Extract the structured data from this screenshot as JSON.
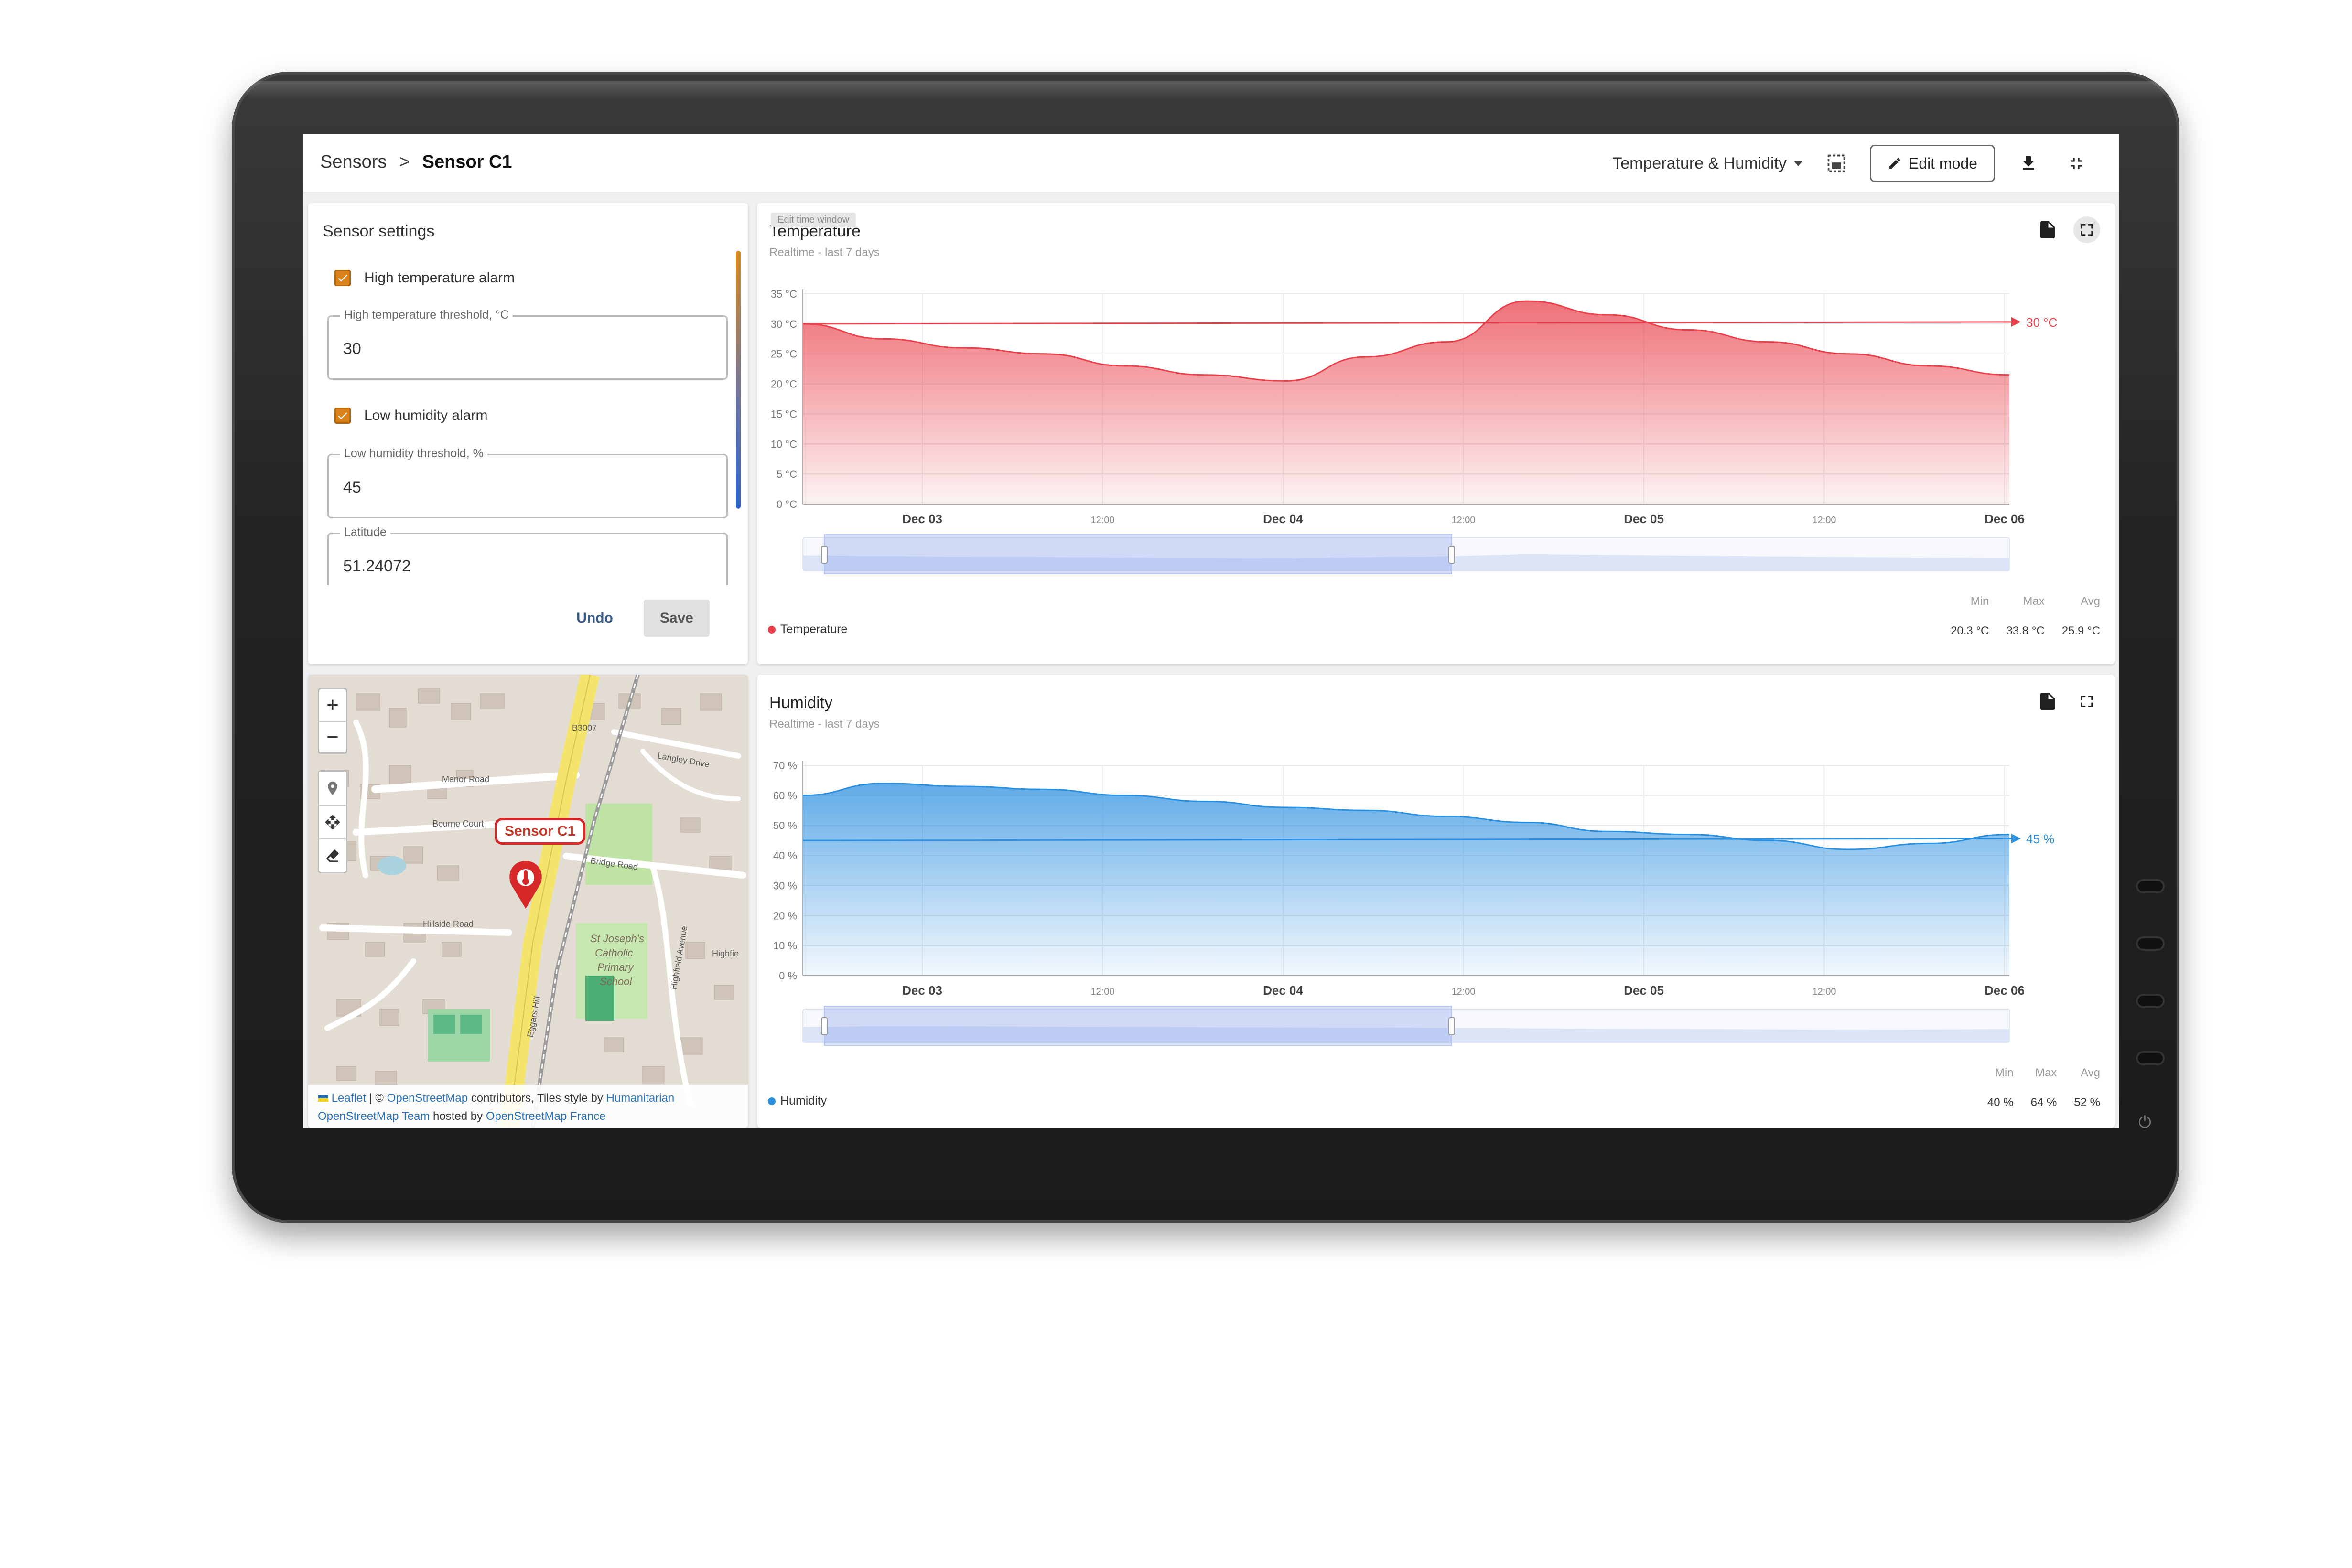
{
  "breadcrumb": {
    "root": "Sensors",
    "separator": ">",
    "current": "Sensor C1"
  },
  "toolbar": {
    "view_selector": "Temperature & Humidity",
    "edit_mode_label": "Edit mode"
  },
  "settings": {
    "title": "Sensor settings",
    "high_temp_alarm_label": "High temperature alarm",
    "high_temp_threshold_label": "High temperature threshold, °C",
    "high_temp_threshold_value": "30",
    "low_humidity_alarm_label": "Low humidity alarm",
    "low_humidity_threshold_label": "Low humidity threshold, %",
    "low_humidity_threshold_value": "45",
    "latitude_label": "Latitude",
    "latitude_value": "51.24072",
    "undo_label": "Undo",
    "save_label": "Save"
  },
  "map": {
    "marker_label": "Sensor C1",
    "street_labels": [
      "Manor Road",
      "Bourne Court",
      "Hillside Road",
      "Bridge Road",
      "B3007",
      "Langley Drive",
      "Highfield Avenue",
      "Eggars Hill",
      "Highfie"
    ],
    "school_label": [
      "St Joseph's",
      "Catholic",
      "Primary",
      "School"
    ],
    "attribution": {
      "leaflet": "Leaflet",
      "sep": " | © ",
      "osm": "OpenStreetMap",
      "contrib": " contributors, Tiles style by ",
      "humanitarian": "Humanitarian",
      "osm_team": "OpenStreetMap Team",
      "hosted": " hosted by ",
      "osm_france": "OpenStreetMap France"
    }
  },
  "temperature": {
    "overlay_tag": "Edit time window",
    "title": "Temperature",
    "subtitle": "Realtime - last 7 days",
    "legend": "Temperature",
    "threshold_label": "30 °C",
    "stats": {
      "min_label": "Min",
      "max_label": "Max",
      "avg_label": "Avg",
      "min": "20.3 °C",
      "max": "33.8 °C",
      "avg": "25.9 °C"
    }
  },
  "humidity": {
    "title": "Humidity",
    "subtitle": "Realtime - last 7 days",
    "legend": "Humidity",
    "threshold_label": "45 %",
    "stats": {
      "min_label": "Min",
      "max_label": "Max",
      "avg_label": "Avg",
      "min": "40 %",
      "max": "64 %",
      "avg": "52 %"
    }
  },
  "chart_data": [
    {
      "type": "area",
      "title": "Temperature",
      "ylim": [
        0,
        35
      ],
      "yticks": [
        "0 °C",
        "5 °C",
        "10 °C",
        "15 °C",
        "20 °C",
        "25 °C",
        "30 °C",
        "35 °C"
      ],
      "xticks": [
        "Dec 03",
        "12:00",
        "Dec 04",
        "12:00",
        "Dec 05",
        "12:00",
        "Dec 06"
      ],
      "color": "#e8414b",
      "threshold": 30,
      "x": [
        "Dec 02 12:00",
        "Dec 02 18:00",
        "Dec 03 00:00",
        "Dec 03 06:00",
        "Dec 03 12:00",
        "Dec 03 18:00",
        "Dec 04 00:00",
        "Dec 04 06:00",
        "Dec 04 12:00",
        "Dec 04 18:00",
        "Dec 05 00:00",
        "Dec 05 06:00",
        "Dec 05 12:00",
        "Dec 05 18:00",
        "Dec 06 00:00",
        "Dec 06 06:00"
      ],
      "values": [
        30,
        27.5,
        26,
        25,
        23,
        21.5,
        20.5,
        24.5,
        27,
        33.8,
        31.5,
        29,
        27,
        25,
        23,
        21.5
      ],
      "grid": true,
      "legend_position": "bottom-left"
    },
    {
      "type": "area",
      "title": "Humidity",
      "ylim": [
        0,
        70
      ],
      "yticks": [
        "0 %",
        "10 %",
        "20 %",
        "30 %",
        "40 %",
        "50 %",
        "60 %",
        "70 %"
      ],
      "xticks": [
        "Dec 03",
        "12:00",
        "Dec 04",
        "12:00",
        "Dec 05",
        "12:00",
        "Dec 06"
      ],
      "color": "#2b8fe0",
      "threshold": 45,
      "x": [
        "Dec 02 12:00",
        "Dec 02 18:00",
        "Dec 03 00:00",
        "Dec 03 06:00",
        "Dec 03 12:00",
        "Dec 03 18:00",
        "Dec 04 00:00",
        "Dec 04 06:00",
        "Dec 04 12:00",
        "Dec 04 18:00",
        "Dec 05 00:00",
        "Dec 05 06:00",
        "Dec 05 12:00",
        "Dec 05 18:00",
        "Dec 06 00:00",
        "Dec 06 06:00"
      ],
      "values": [
        60,
        64,
        63,
        62,
        60,
        58,
        56,
        55,
        53,
        51,
        48,
        47,
        45,
        42,
        44,
        47
      ],
      "grid": true,
      "legend_position": "bottom-left"
    }
  ]
}
